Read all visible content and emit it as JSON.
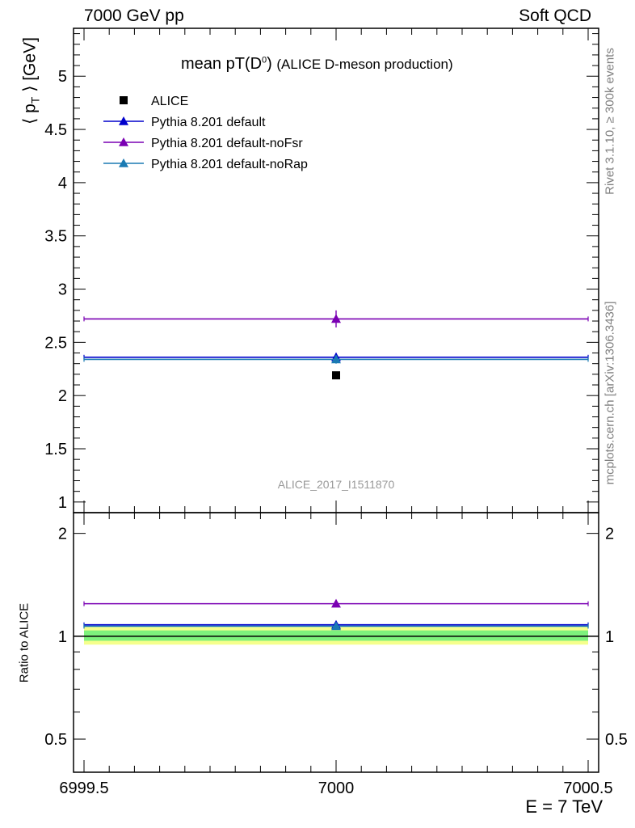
{
  "header": {
    "left": "7000 GeV pp",
    "right": "Soft QCD"
  },
  "title": {
    "main": "mean pT(D",
    "sup": "0",
    "close": ")",
    "sub": "(ALICE D-meson production)"
  },
  "side_labels": {
    "rivet": "Rivet 3.1.10, ≥ 300k events",
    "mcplots": "mcplots.cern.ch [arXiv:1306.3436]"
  },
  "analysis_id": "ALICE_2017_I1511870",
  "xlabel": "E = 7 TeV",
  "colors": {
    "alice": "#000000",
    "default": "#0000cc",
    "noFsr": "#7a00b3",
    "noRap": "#1a7ab3",
    "band_inner": "#7df27d",
    "band_outer": "#f5ff8c"
  },
  "chart_data": [
    {
      "type": "scatter",
      "panel": "main",
      "ylabel": "⟨ p_T ⟩ [GeV]",
      "xlim": [
        6999.5,
        7000.5
      ],
      "ylim": [
        0.9,
        5.45
      ],
      "yticks": [
        1,
        1.5,
        2,
        2.5,
        3,
        3.5,
        4,
        4.5,
        5
      ],
      "ytick_labels": [
        "1",
        "1.5",
        "2",
        "2.5",
        "3",
        "3.5",
        "4",
        "4.5",
        "5"
      ],
      "legend_position": "top-left",
      "series": [
        {
          "name": "ALICE",
          "key": "alice",
          "marker": "square",
          "x": 7000,
          "y": 2.19,
          "xerr": 0,
          "yerr": 0
        },
        {
          "name": "Pythia 8.201 default",
          "key": "default",
          "marker": "triangle",
          "x": 7000,
          "y": 2.36,
          "xerr": 0.5,
          "yerr": 0.04
        },
        {
          "name": "Pythia 8.201 default-noFsr",
          "key": "noFsr",
          "marker": "triangle",
          "x": 7000,
          "y": 2.72,
          "xerr": 0.5,
          "yerr": 0.08
        },
        {
          "name": "Pythia 8.201 default-noRap",
          "key": "noRap",
          "marker": "triangle",
          "x": 7000,
          "y": 2.34,
          "xerr": 0.5,
          "yerr": 0.04
        }
      ]
    },
    {
      "type": "scatter",
      "panel": "ratio",
      "ylabel": "Ratio to ALICE",
      "xlim": [
        6999.5,
        7000.5
      ],
      "ylim": [
        0.4,
        2.3
      ],
      "log_y": true,
      "yticks": [
        0.5,
        1,
        2
      ],
      "ytick_labels": [
        "0.5",
        "1",
        "2"
      ],
      "xticks": [
        6999.5,
        7000,
        7000.5
      ],
      "xtick_labels": [
        "6999.5",
        "7000",
        "7000.5"
      ],
      "band": {
        "inner": [
          0.97,
          1.04
        ],
        "outer": [
          0.945,
          1.065
        ]
      },
      "series": [
        {
          "key": "default",
          "x": 7000,
          "y": 1.08,
          "xerr": 0.5,
          "yerr": 0.015
        },
        {
          "key": "noFsr",
          "x": 7000,
          "y": 1.245,
          "xerr": 0.5,
          "yerr": 0.02
        },
        {
          "key": "noRap",
          "x": 7000,
          "y": 1.07,
          "xerr": 0.5,
          "yerr": 0.015
        }
      ]
    }
  ]
}
